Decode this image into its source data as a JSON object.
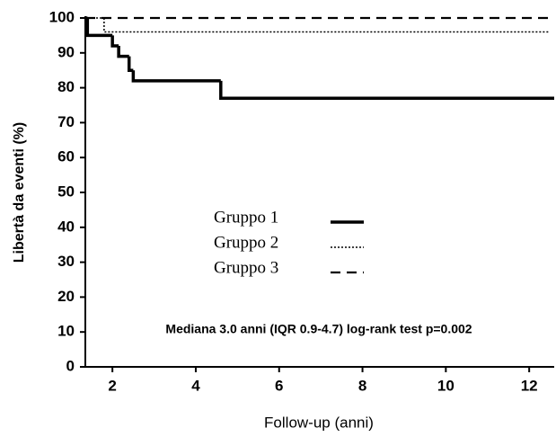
{
  "chart_data": {
    "type": "step",
    "y_label": "Libertà da eventi (%)",
    "x_label": "Follow-up (anni)",
    "annotation": "Mediana 3.0 anni (IQR 0.9-4.7) log-rank test p=0.002",
    "xlim": [
      1.35,
      12.6
    ],
    "xticks": [
      2,
      4,
      6,
      8,
      10,
      12
    ],
    "ylim": [
      0,
      100
    ],
    "yticks": [
      0,
      10,
      20,
      30,
      40,
      50,
      60,
      70,
      80,
      90,
      100
    ],
    "series": [
      {
        "name": "Gruppo 1",
        "color": "#000000",
        "dash": "solid",
        "x": [
          1.35,
          1.4,
          2.0,
          2.15,
          2.4,
          2.5,
          4.6,
          12.6
        ],
        "values": [
          100,
          95,
          92,
          89,
          85,
          82,
          77,
          77
        ]
      },
      {
        "name": "Gruppo 2",
        "color": "#000000",
        "dash": "dotted",
        "x": [
          1.35,
          1.8,
          12.5
        ],
        "values": [
          100,
          96,
          96
        ]
      },
      {
        "name": "Gruppo 3",
        "color": "#000000",
        "dash": "dashed",
        "x": [
          1.35,
          12.5
        ],
        "values": [
          100,
          100
        ]
      }
    ]
  }
}
